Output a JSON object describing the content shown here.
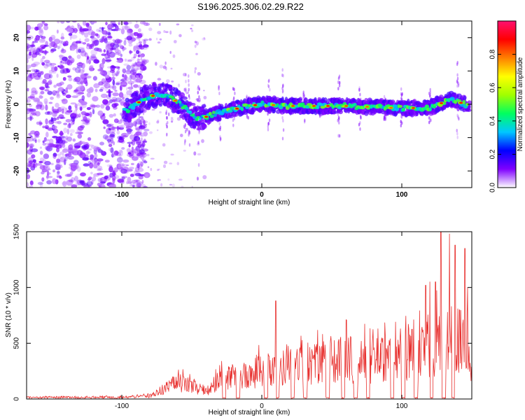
{
  "title": "S196.2025.306.02.29.R22",
  "colors": {
    "snr_line": "#e8312f",
    "background": "#ffffff",
    "axis": "#000000"
  },
  "chart_data": [
    {
      "type": "heatmap",
      "xlabel": "Height of straight line (km)",
      "ylabel": "Frequency (Hz)",
      "xlim": [
        -168,
        150
      ],
      "ylim": [
        -25,
        25
      ],
      "x_ticks": [
        -100,
        0,
        100
      ],
      "x_tick_labels": [
        "-100",
        "0",
        "100"
      ],
      "y_ticks": [
        -20,
        -10,
        0,
        10,
        20
      ],
      "y_tick_labels": [
        "-20",
        "-10",
        "0",
        "10",
        "20"
      ],
      "colorbar": {
        "label": "Normalized spectral amplitude",
        "range": [
          0,
          1
        ],
        "ticks": [
          0.0,
          0.2,
          0.4,
          0.6,
          0.8
        ],
        "tick_labels": [
          "0.0",
          "0.2",
          "0.4",
          "0.6",
          "0.8"
        ],
        "colormap": [
          "#ffffff",
          "#7f00ff",
          "#0000ff",
          "#00c8ff",
          "#00ff60",
          "#a0ff00",
          "#ffff00",
          "#ff8000",
          "#ff0000",
          "#ff1070"
        ]
      },
      "ridge": [
        {
          "x": -95,
          "f": -1.5
        },
        {
          "x": -85,
          "f": 1.5
        },
        {
          "x": -75,
          "f": 3.0
        },
        {
          "x": -65,
          "f": 2.0
        },
        {
          "x": -55,
          "f": -1.0
        },
        {
          "x": -45,
          "f": -4.5
        },
        {
          "x": -35,
          "f": -3.0
        },
        {
          "x": -20,
          "f": -1.5
        },
        {
          "x": -10,
          "f": -0.5
        },
        {
          "x": 0,
          "f": 0.0
        },
        {
          "x": 20,
          "f": -0.5
        },
        {
          "x": 40,
          "f": -0.5
        },
        {
          "x": 60,
          "f": -0.5
        },
        {
          "x": 80,
          "f": -0.8
        },
        {
          "x": 100,
          "f": -1.2
        },
        {
          "x": 120,
          "f": -1.0
        },
        {
          "x": 135,
          "f": 1.5
        },
        {
          "x": 145,
          "f": 0.0
        }
      ]
    },
    {
      "type": "line",
      "xlabel": "Height of straight line (km)",
      "ylabel": "SNR (10 * v/v)",
      "xlim": [
        -168,
        150
      ],
      "ylim": [
        0,
        1500
      ],
      "x_ticks": [
        -100,
        0,
        100
      ],
      "x_tick_labels": [
        "-100",
        "0",
        "100"
      ],
      "y_ticks": [
        0,
        500,
        1000,
        1500
      ],
      "y_tick_labels": [
        "0",
        "500",
        "1000",
        "1500"
      ],
      "envelope": {
        "x": [
          -168,
          -100,
          -80,
          -70,
          -60,
          -50,
          -40,
          -30,
          -20,
          -10,
          0,
          10,
          20,
          30,
          40,
          50,
          60,
          70,
          80,
          90,
          100,
          110,
          120,
          130,
          140,
          150
        ],
        "y": [
          20,
          25,
          40,
          140,
          230,
          180,
          80,
          260,
          300,
          340,
          400,
          420,
          470,
          480,
          500,
          540,
          560,
          520,
          560,
          580,
          620,
          650,
          700,
          800,
          850,
          600
        ]
      },
      "dropouts": [
        -27,
        -17,
        3,
        11,
        22,
        31,
        47,
        58,
        67,
        76,
        93,
        101,
        110,
        121,
        130,
        137
      ],
      "peaks": [
        {
          "x": 10,
          "y": 880
        },
        {
          "x": 117,
          "y": 1020
        },
        {
          "x": 120,
          "y": 1050
        },
        {
          "x": 124,
          "y": 1050
        },
        {
          "x": 128,
          "y": 1500
        },
        {
          "x": 134,
          "y": 1480
        },
        {
          "x": 138,
          "y": 1380
        },
        {
          "x": 145,
          "y": 1350
        },
        {
          "x": 147,
          "y": 1000
        }
      ]
    }
  ]
}
